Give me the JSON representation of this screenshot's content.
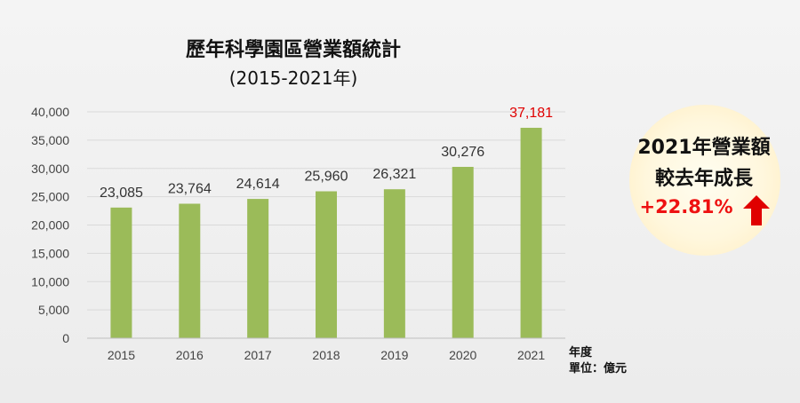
{
  "chart_data": {
    "type": "bar",
    "title": "歷年科學園區營業額統計",
    "subtitle": "(2015-2021年)",
    "categories": [
      "2015",
      "2016",
      "2017",
      "2018",
      "2019",
      "2020",
      "2021"
    ],
    "values": [
      23085,
      23764,
      24614,
      25960,
      26321,
      30276,
      37181
    ],
    "value_labels": [
      "23,085",
      "23,764",
      "24,614",
      "25,960",
      "26,321",
      "30,276",
      "37,181"
    ],
    "ylim": [
      0,
      40000
    ],
    "yticks": [
      0,
      5000,
      10000,
      15000,
      20000,
      25000,
      30000,
      35000,
      40000
    ],
    "ytick_labels": [
      "0",
      "5,000",
      "10,000",
      "15,000",
      "20,000",
      "25,000",
      "30,000",
      "35,000",
      "40,000"
    ],
    "xlabel": "年度",
    "unit_note": "單位：億元",
    "grid": true,
    "bar_color": "#9bbb59",
    "highlight_label_color": "#e00000",
    "highlight_index": 6
  },
  "badge": {
    "line1": "2021年營業額",
    "line2": "較去年成長",
    "line3": "+22.81%",
    "arrow_icon": "up-arrow-icon",
    "arrow_color": "#e00000",
    "background_color": "#fff3d6"
  }
}
